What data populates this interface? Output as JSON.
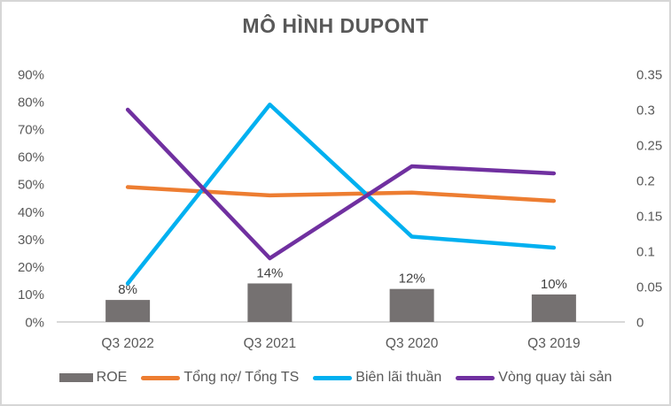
{
  "window": {
    "background": "#ffffff",
    "border_color": "#d6d6d6"
  },
  "chart_data": {
    "type": "combo",
    "title": "MÔ HÌNH DUPONT",
    "categories": [
      "Q3 2022",
      "Q3 2021",
      "Q3 2020",
      "Q3 2019"
    ],
    "series": [
      {
        "name": "ROE",
        "slug": "roe",
        "type": "bar",
        "axis": "left",
        "values": [
          8,
          14,
          12,
          10
        ],
        "data_labels": [
          "8%",
          "14%",
          "12%",
          "10%"
        ],
        "color": "#757171"
      },
      {
        "name": "Tổng nợ/ Tổng TS",
        "slug": "tong-no-tong-ts",
        "type": "line",
        "axis": "left",
        "values": [
          49,
          46,
          47,
          44
        ],
        "color": "#ED7D31"
      },
      {
        "name": "Biên lãi thuần",
        "slug": "bien-lai-thuan",
        "type": "line",
        "axis": "left",
        "values": [
          14,
          79,
          31,
          27
        ],
        "color": "#00B0F0"
      },
      {
        "name": "Vòng quay tài sản",
        "slug": "vong-quay-tai-san",
        "type": "line",
        "axis": "right",
        "values": [
          0.3,
          0.09,
          0.22,
          0.21
        ],
        "color": "#7030A0"
      }
    ],
    "left_axis": {
      "min": 0,
      "max": 90,
      "unit": "%",
      "ticks": [
        "0%",
        "10%",
        "20%",
        "30%",
        "40%",
        "50%",
        "60%",
        "70%",
        "80%",
        "90%"
      ]
    },
    "right_axis": {
      "min": 0,
      "max": 0.35,
      "ticks": [
        "0",
        "0.05",
        "0.1",
        "0.15",
        "0.2",
        "0.25",
        "0.3",
        "0.35"
      ]
    },
    "grid": false,
    "legend_position": "bottom",
    "text_color": "#595959",
    "data_label_color": "#404040",
    "axis_line_color": "#D9D9D9"
  }
}
